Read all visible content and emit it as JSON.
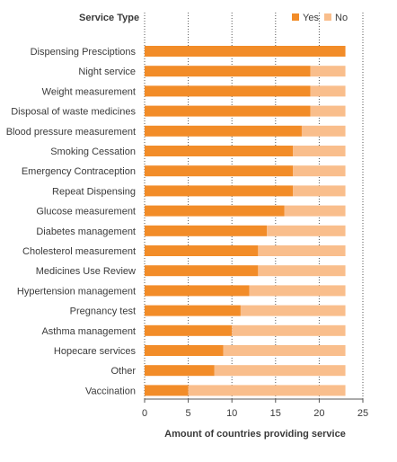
{
  "chart_data": {
    "type": "bar",
    "orientation": "horizontal",
    "stacked": true,
    "title": "",
    "category_header": "Service Type",
    "xlabel": "Amount of countries providing service",
    "xlim": [
      0,
      25
    ],
    "xticks": [
      0,
      5,
      10,
      15,
      20,
      25
    ],
    "grid": "vertical dotted",
    "legend": "top-right",
    "categories": [
      "Dispensing Presciptions",
      "Night service",
      "Weight measurement",
      "Disposal of waste medicines",
      "Blood pressure measurement",
      "Smoking Cessation",
      "Emergency Contraception",
      "Repeat Dispensing",
      "Glucose measurement",
      "Diabetes management",
      "Cholesterol measurement",
      "Medicines Use Review",
      "Hypertension management",
      "Pregnancy test",
      "Asthma management",
      "Hopecare services",
      "Other",
      "Vaccination"
    ],
    "series": [
      {
        "name": "Yes",
        "color": "#f28c28",
        "values": [
          23,
          19,
          19,
          19,
          18,
          17,
          17,
          17,
          16,
          14,
          13,
          13,
          12,
          11,
          10,
          9,
          8,
          5
        ]
      },
      {
        "name": "No",
        "color": "#f9be8c",
        "values": [
          0,
          4,
          4,
          4,
          5,
          6,
          6,
          6,
          7,
          9,
          10,
          10,
          11,
          12,
          13,
          14,
          15,
          18
        ]
      }
    ]
  }
}
